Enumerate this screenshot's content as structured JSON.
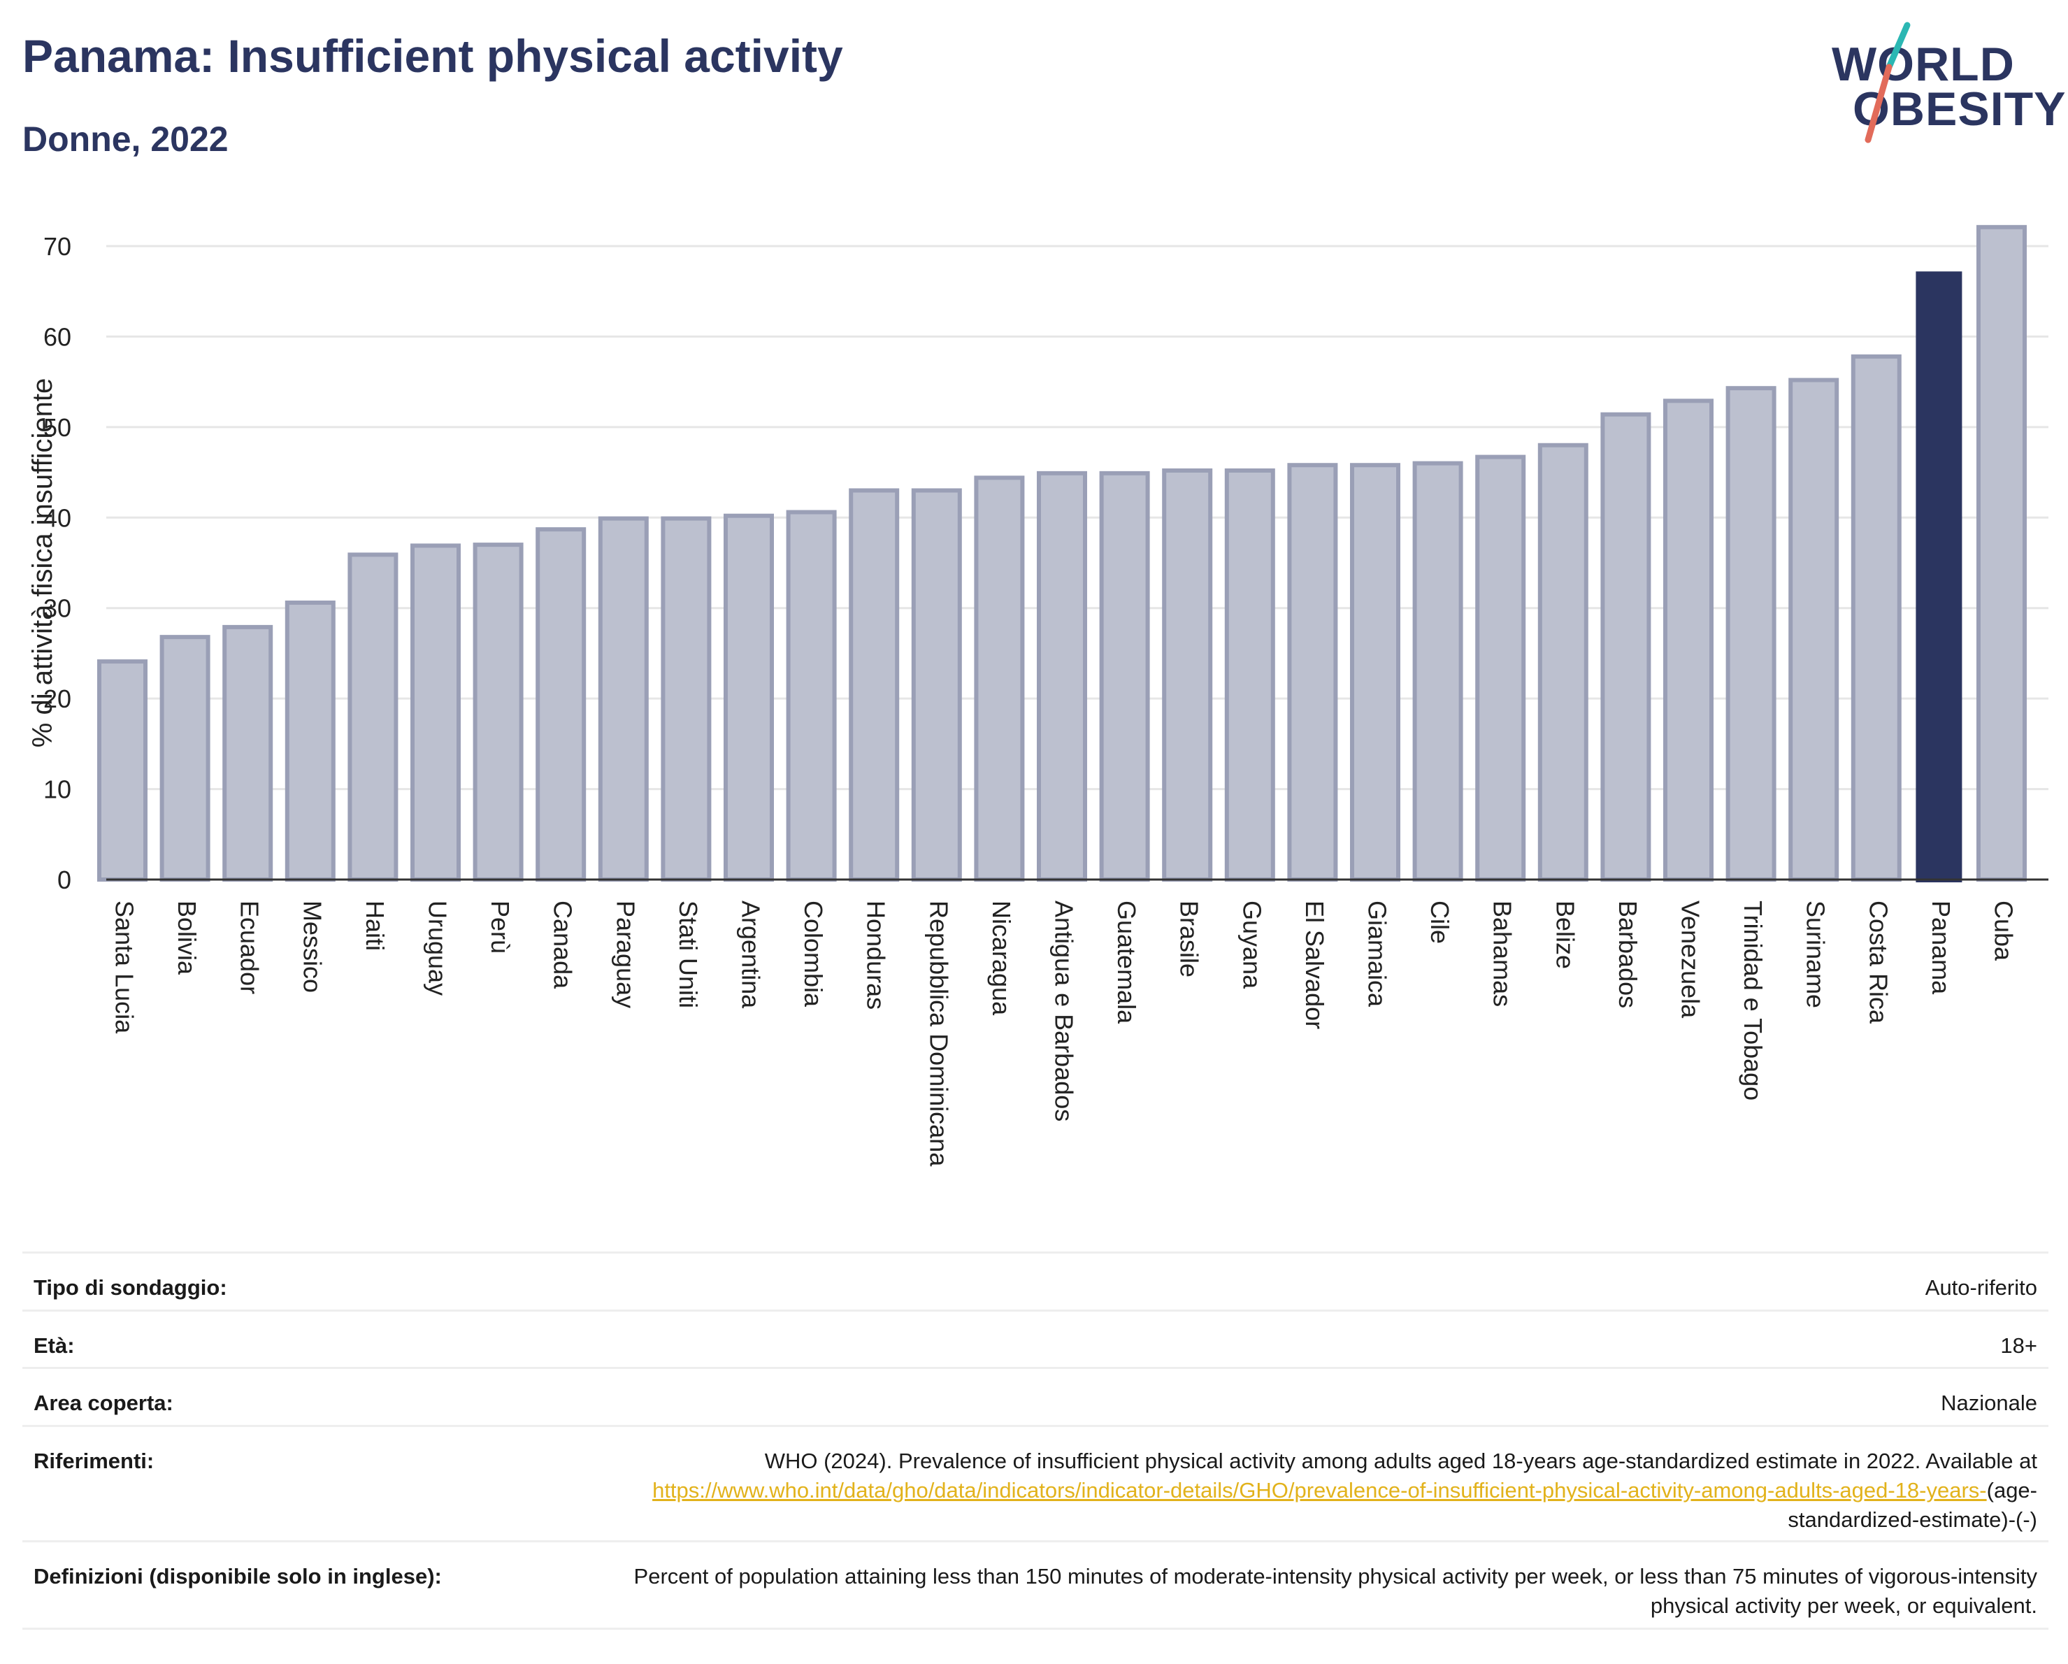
{
  "header": {
    "title": "Panama: Insufficient physical activity",
    "subtitle": "Donne, 2022"
  },
  "logo": {
    "line1": "WORLD",
    "line2": "OBESITY"
  },
  "colors": {
    "title": "#2b3560",
    "highlight_bar": "#2b3560",
    "other_bar_fill": "#bcc0cf",
    "other_bar_stroke": "#9a9fb6",
    "grid": "#e6e6e6",
    "link": "#e2b21b",
    "logo_slash_top": "#2bb7b3",
    "logo_slash_bottom": "#e26b5a"
  },
  "chart_data": {
    "type": "bar",
    "ylabel": "% di attività fisica insufficiente",
    "xlabel": "",
    "ylim": [
      0,
      70
    ],
    "yticks": [
      0,
      10,
      20,
      30,
      40,
      50,
      60,
      70
    ],
    "grid": true,
    "highlight": "Panama",
    "categories": [
      "Santa Lucia",
      "Bolivia",
      "Ecuador",
      "Messico",
      "Haiti",
      "Uruguay",
      "Perù",
      "Canada",
      "Paraguay",
      "Stati Uniti",
      "Argentina",
      "Colombia",
      "Honduras",
      "Repubblica Dominicana",
      "Nicaragua",
      "Antigua e Barbados",
      "Guatemala",
      "Brasile",
      "Guyana",
      "El Salvador",
      "Giamaica",
      "Cile",
      "Bahamas",
      "Belize",
      "Barbados",
      "Venezuela",
      "Trinidad e Tobago",
      "Suriname",
      "Costa Rica",
      "Panama",
      "Cuba"
    ],
    "values": [
      24.1,
      26.8,
      27.9,
      30.6,
      35.9,
      36.9,
      37.0,
      38.7,
      39.9,
      39.9,
      40.2,
      40.6,
      43.0,
      43.0,
      44.4,
      44.9,
      44.9,
      45.2,
      45.2,
      45.8,
      45.8,
      46.0,
      46.7,
      48.0,
      51.4,
      52.9,
      54.3,
      55.2,
      57.8,
      67.2,
      72.1
    ]
  },
  "info_table": [
    {
      "key": "Tipo di sondaggio:",
      "value": "Auto-riferito"
    },
    {
      "key": "Età:",
      "value": "18+"
    },
    {
      "key": "Area coperta:",
      "value": "Nazionale"
    },
    {
      "key": "Riferimenti:",
      "value_pre": "WHO (2024). Prevalence of insufficient physical activity among adults aged 18-years age-standardized estimate in 2022. Available at",
      "link": "https://www.who.int/data/gho/data/indicators/indicator-details/GHO/prevalence-of-insufficient-physical-activity-among-adults-aged-18-years-",
      "value_post": "(age-standardized-estimate)-(-)"
    },
    {
      "key": "Definizioni (disponibile solo in inglese):",
      "value": "Percent of population attaining less than 150 minutes of moderate-intensity physical activity per week, or less than 75 minutes of vigorous-intensity physical activity per week, or equivalent."
    }
  ]
}
